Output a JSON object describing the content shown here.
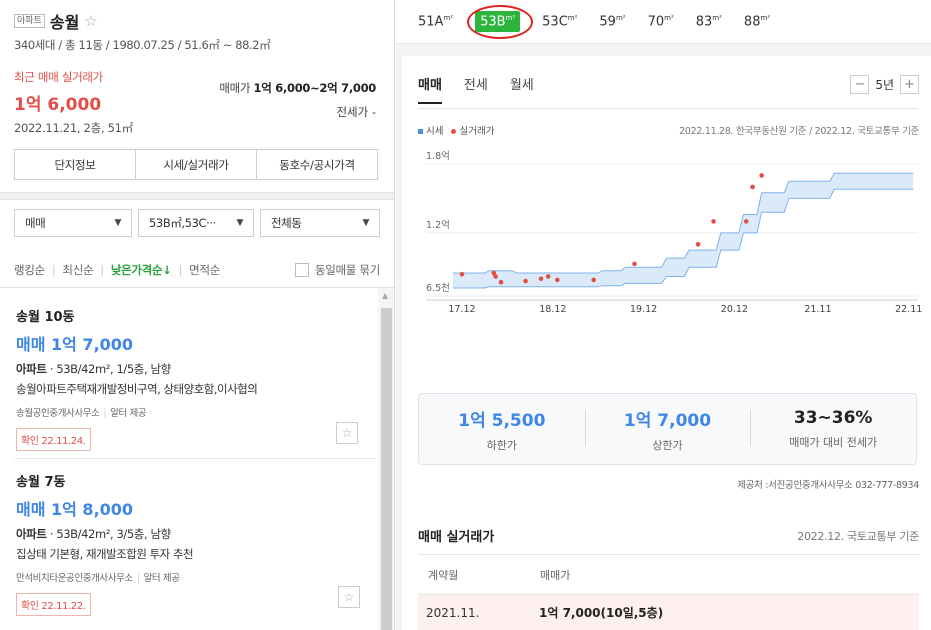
{
  "complex": {
    "type_tag": "아파트",
    "name": "송월",
    "info": "340세대 / 총 11동 / 1980.07.25 / 51.6㎡ ~ 88.2㎡",
    "recent_label": "최근 매매 실거래가",
    "recent_price": "1억 6,000",
    "recent_date": "2022.11.21, 2층, 51㎡",
    "range_label": "매매가",
    "range_value": "1억 6,000~2억 7,000",
    "jeonse": "전세가 -",
    "tabs": [
      "단지정보",
      "시세/실거래가",
      "동호수/공시가격"
    ]
  },
  "filters": {
    "trade": "매매",
    "area": "53B㎡,53C···",
    "dong": "전체동"
  },
  "sort": {
    "items": [
      "랭킹순",
      "최신순",
      "낮은가격순↓",
      "면적순"
    ],
    "group_label": "동일매물 묶기"
  },
  "listings": [
    {
      "name": "송월 10동",
      "price": "매매 1억 7,000",
      "type": "아파트",
      "desc": "· 53B/42m², 1/5층, 남향",
      "feature": "송월아파트주택재개발정비구역, 상태양호함,이사협의",
      "agent": "송월공인중개사사무소",
      "provider": "알터 제공",
      "confirm": "확인 22.11.24."
    },
    {
      "name": "송월 7동",
      "price": "매매 1억 8,000",
      "type": "아파트",
      "desc": "· 53B/42m², 3/5층, 남향",
      "feature": "집상태 기본형, 재개발조합원 투자 추천",
      "agent": "만석비치타운공인중개사사무소",
      "provider": "알터 제공",
      "confirm": "확인 22.11.22."
    }
  ],
  "area_tabs": [
    {
      "label": "51A",
      "unit": "m²"
    },
    {
      "label": "53B",
      "unit": "m²"
    },
    {
      "label": "53C",
      "unit": "m²"
    },
    {
      "label": "59",
      "unit": "m²"
    },
    {
      "label": "70",
      "unit": "m²"
    },
    {
      "label": "83",
      "unit": "m²"
    },
    {
      "label": "88",
      "unit": "m²"
    }
  ],
  "chart_tabs": [
    "매매",
    "전세",
    "월세"
  ],
  "period": {
    "minus": "−",
    "label": "5년",
    "plus": "+"
  },
  "legend": {
    "series1": "시세",
    "series2": "실거래가"
  },
  "source_note": "2022.11.28. 한국부동산원 기준 / 2022.12. 국토교통부 기준",
  "colors": {
    "accent_green": "#2db43d",
    "price_blue": "#3f86e6",
    "red": "#e24e45",
    "band": "#4a90e2"
  },
  "chart_data": {
    "type": "line",
    "x_ticks": [
      "17.12",
      "18.12",
      "19.12",
      "20.12",
      "21.11",
      "22.11"
    ],
    "y_ticks": [
      "1.8억",
      "1.2억",
      "6.5천"
    ],
    "ylim": [
      0.65,
      1.8
    ],
    "series": [
      {
        "name": "시세",
        "x": [
          2017.85,
          2018.2,
          2018.25,
          2018.5,
          2018.55,
          2019.45,
          2019.5,
          2019.7,
          2019.75,
          2020.15,
          2020.2,
          2020.4,
          2020.45,
          2020.75,
          2020.8,
          2021.0,
          2021.05,
          2021.2,
          2021.25,
          2021.5,
          2021.55,
          2022.0,
          2022.05,
          2022.92
        ],
        "lower": [
          0.72,
          0.72,
          0.73,
          0.73,
          0.73,
          0.73,
          0.74,
          0.74,
          0.76,
          0.76,
          0.82,
          0.82,
          0.9,
          0.9,
          1.05,
          1.05,
          1.2,
          1.2,
          1.38,
          1.38,
          1.5,
          1.5,
          1.58,
          1.58
        ],
        "upper": [
          0.85,
          0.85,
          0.87,
          0.87,
          0.85,
          0.85,
          0.87,
          0.87,
          0.9,
          0.9,
          0.98,
          0.98,
          1.05,
          1.05,
          1.2,
          1.2,
          1.36,
          1.36,
          1.55,
          1.55,
          1.65,
          1.65,
          1.72,
          1.72
        ]
      },
      {
        "name": "실거래가",
        "points": [
          [
            2017.95,
            0.84
          ],
          [
            2018.3,
            0.85
          ],
          [
            2018.32,
            0.82
          ],
          [
            2018.38,
            0.77
          ],
          [
            2018.65,
            0.78
          ],
          [
            2018.82,
            0.8
          ],
          [
            2018.9,
            0.82
          ],
          [
            2019.0,
            0.79
          ],
          [
            2019.4,
            0.79
          ],
          [
            2019.85,
            0.93
          ],
          [
            2020.55,
            1.1
          ],
          [
            2020.72,
            1.3
          ],
          [
            2021.08,
            1.3
          ],
          [
            2021.15,
            1.6
          ],
          [
            2021.25,
            1.7
          ]
        ]
      }
    ]
  },
  "stats": [
    {
      "value": "1억 5,500",
      "label": "하한가"
    },
    {
      "value": "1억 7,000",
      "label": "상한가"
    },
    {
      "value": "33~36%",
      "label": "매매가 대비 전세가"
    }
  ],
  "provider_note": "제공처 :서진공인중개사사무소 032-777-8934",
  "transactions": {
    "title": "매매 실거래가",
    "source": "2022.12. 국토교통부 기준",
    "headers": [
      "계약월",
      "매매가"
    ],
    "rows": [
      {
        "month": "2021.11.",
        "price": "1억 7,000(10일,5층)"
      }
    ]
  }
}
